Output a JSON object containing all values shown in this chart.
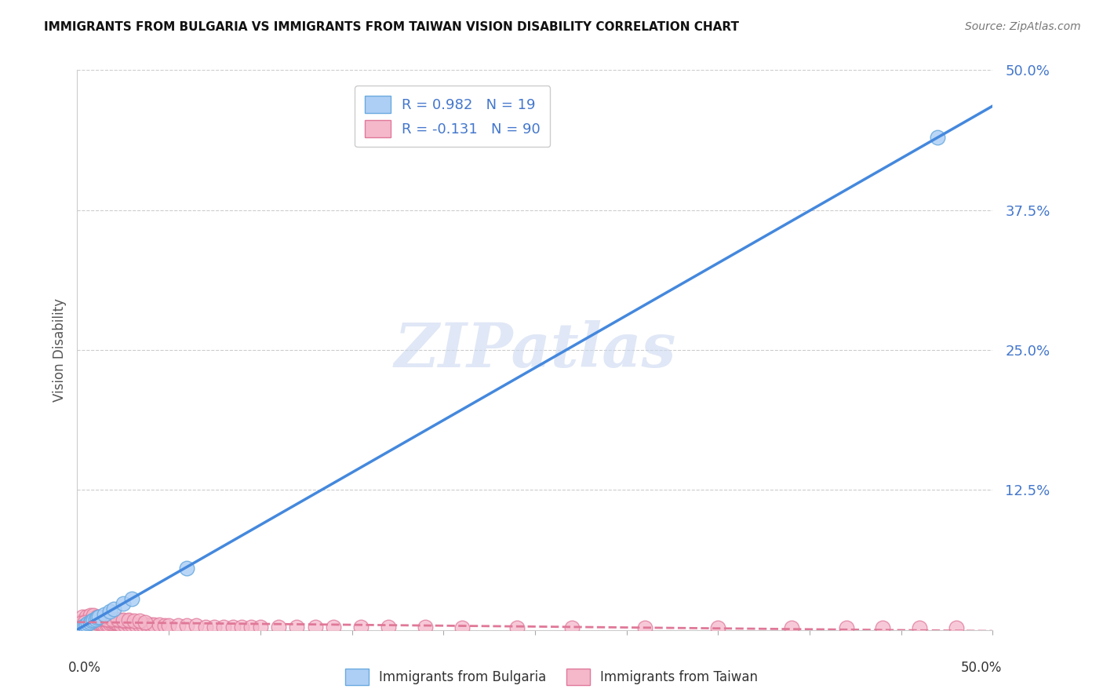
{
  "title": "IMMIGRANTS FROM BULGARIA VS IMMIGRANTS FROM TAIWAN VISION DISABILITY CORRELATION CHART",
  "source": "Source: ZipAtlas.com",
  "ylabel": "Vision Disability",
  "xlim": [
    0,
    0.5
  ],
  "ylim": [
    0,
    0.5
  ],
  "ytick_vals": [
    0.125,
    0.25,
    0.375,
    0.5
  ],
  "ytick_labels": [
    "12.5%",
    "25.0%",
    "37.5%",
    "50.0%"
  ],
  "xtick_minor_vals": [
    0.05,
    0.1,
    0.15,
    0.2,
    0.25,
    0.3,
    0.35,
    0.4,
    0.45,
    0.5
  ],
  "watermark": "ZIPatlas",
  "bulgaria_color": "#aecff5",
  "bulgaria_edge": "#6aaae0",
  "taiwan_color": "#f5b8cb",
  "taiwan_edge": "#e0789a",
  "bulgaria_r": 0.982,
  "bulgaria_n": 19,
  "taiwan_r": -0.131,
  "taiwan_n": 90,
  "axis_label_color": "#4477cc",
  "regression_bulgaria_color": "#4488dd",
  "regression_taiwan_color": "#e07898",
  "grid_color": "#cccccc",
  "spine_color": "#cccccc",
  "title_color": "#111111",
  "source_color": "#777777",
  "ylabel_color": "#555555",
  "watermark_color": "#ccd8f0",
  "legend_border_color": "#cccccc",
  "bulgaria_x": [
    0.001,
    0.002,
    0.003,
    0.004,
    0.005,
    0.006,
    0.007,
    0.008,
    0.009,
    0.01,
    0.011,
    0.012,
    0.015,
    0.018,
    0.02,
    0.025,
    0.03,
    0.06,
    0.47
  ],
  "bulgaria_y": [
    0.001,
    0.002,
    0.003,
    0.004,
    0.005,
    0.006,
    0.007,
    0.008,
    0.009,
    0.01,
    0.011,
    0.012,
    0.014,
    0.017,
    0.019,
    0.024,
    0.028,
    0.055,
    0.44
  ],
  "taiwan_x_cluster": [
    0.001,
    0.002,
    0.003,
    0.004,
    0.005,
    0.006,
    0.007,
    0.008,
    0.009,
    0.01,
    0.011,
    0.012,
    0.013,
    0.014,
    0.015,
    0.016,
    0.017,
    0.018,
    0.019,
    0.02,
    0.021,
    0.022,
    0.024,
    0.026,
    0.028,
    0.03,
    0.032,
    0.034,
    0.036,
    0.038,
    0.04,
    0.042,
    0.045,
    0.048,
    0.05,
    0.055,
    0.06,
    0.065,
    0.07,
    0.075,
    0.08,
    0.085,
    0.09,
    0.095,
    0.1,
    0.11,
    0.12,
    0.13,
    0.003,
    0.005,
    0.007,
    0.009,
    0.012,
    0.015,
    0.018,
    0.022,
    0.025,
    0.028,
    0.003,
    0.005,
    0.007,
    0.009,
    0.011,
    0.013,
    0.016,
    0.019,
    0.022,
    0.025,
    0.028,
    0.031,
    0.034,
    0.037,
    0.14,
    0.155,
    0.17,
    0.19,
    0.21,
    0.24,
    0.27,
    0.31,
    0.35,
    0.39,
    0.42,
    0.44,
    0.46,
    0.48,
    0.002,
    0.004
  ],
  "taiwan_y_cluster": [
    0.003,
    0.004,
    0.005,
    0.005,
    0.006,
    0.007,
    0.007,
    0.008,
    0.008,
    0.007,
    0.007,
    0.006,
    0.006,
    0.005,
    0.005,
    0.005,
    0.005,
    0.006,
    0.006,
    0.007,
    0.007,
    0.006,
    0.005,
    0.005,
    0.005,
    0.005,
    0.005,
    0.005,
    0.005,
    0.005,
    0.005,
    0.005,
    0.005,
    0.004,
    0.004,
    0.004,
    0.004,
    0.004,
    0.003,
    0.003,
    0.003,
    0.003,
    0.003,
    0.003,
    0.003,
    0.003,
    0.003,
    0.003,
    0.008,
    0.009,
    0.01,
    0.011,
    0.01,
    0.01,
    0.009,
    0.009,
    0.008,
    0.008,
    0.012,
    0.012,
    0.013,
    0.013,
    0.012,
    0.011,
    0.01,
    0.01,
    0.01,
    0.009,
    0.009,
    0.008,
    0.008,
    0.007,
    0.003,
    0.003,
    0.003,
    0.003,
    0.002,
    0.002,
    0.002,
    0.002,
    0.002,
    0.002,
    0.002,
    0.002,
    0.002,
    0.002,
    0.006,
    0.007
  ]
}
